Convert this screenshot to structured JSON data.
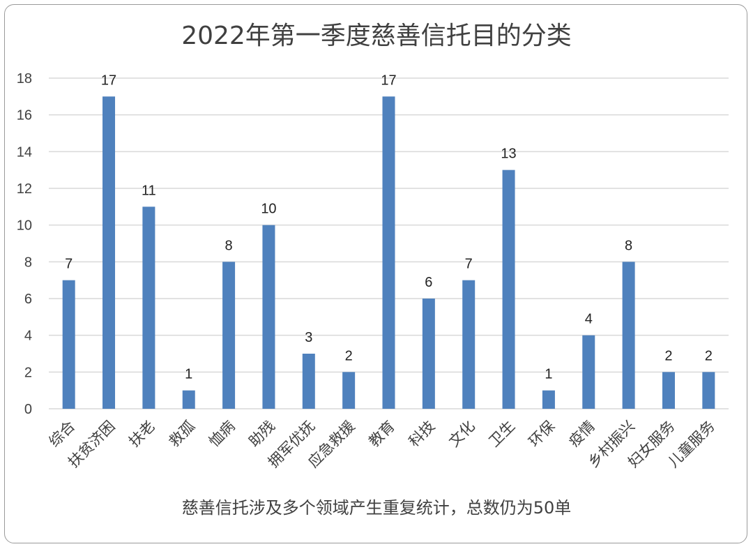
{
  "chart_data": {
    "type": "bar",
    "title": "2022年第一季度慈善信托目的分类",
    "note": "慈善信托涉及多个领域产生重复统计，总数仍为50单",
    "categories": [
      "综合",
      "扶贫济困",
      "扶老",
      "救孤",
      "恤病",
      "助残",
      "拥军优抚",
      "应急救援",
      "教育",
      "科技",
      "文化",
      "卫生",
      "环保",
      "疫情",
      "乡村振兴",
      "妇女服务",
      "儿童服务"
    ],
    "values": [
      7,
      17,
      11,
      1,
      8,
      10,
      3,
      2,
      17,
      6,
      7,
      13,
      1,
      4,
      8,
      2,
      2
    ],
    "ylim": [
      0,
      18
    ],
    "yticks": [
      0,
      2,
      4,
      6,
      8,
      10,
      12,
      14,
      16,
      18
    ],
    "bar_color": "#4f81bd",
    "grid_color": "#d9d9d9",
    "grid": true,
    "legend": false
  }
}
